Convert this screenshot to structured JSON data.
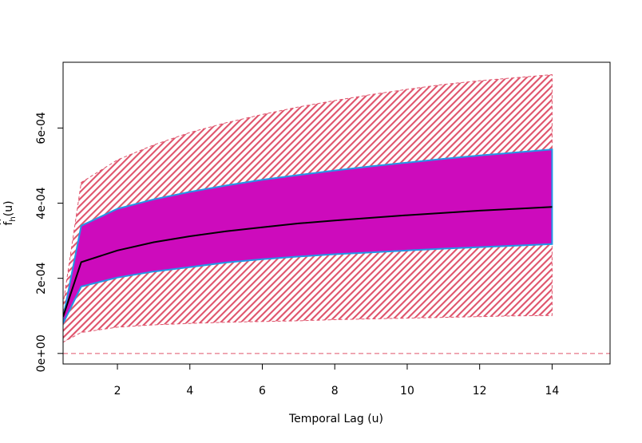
{
  "chart_data": {
    "type": "area",
    "title": "",
    "xlabel": "Temporal Lag (u)",
    "ylabel_main": "f",
    "ylabel_hat": "^",
    "ylabel_sub": "h",
    "ylabel_arg": "(u)",
    "xlim": [
      0.5,
      15.6
    ],
    "ylim": [
      -2.8e-05,
      0.000775
    ],
    "x_ticks": [
      2,
      4,
      6,
      8,
      10,
      12,
      14
    ],
    "x_tick_labels": [
      "2",
      "4",
      "6",
      "8",
      "10",
      "12",
      "14"
    ],
    "y_ticks": [
      0,
      0.0002,
      0.0004,
      0.0006
    ],
    "y_tick_labels": [
      "0e+00",
      "2e-04",
      "4e-04",
      "6e-04"
    ],
    "x": [
      0.5,
      1,
      2,
      3,
      4,
      5,
      6,
      7,
      8,
      9,
      10,
      11,
      12,
      13,
      14
    ],
    "series": [
      {
        "name": "outer_upper",
        "values": [
          0.00013,
          0.000455,
          0.000515,
          0.000555,
          0.000588,
          0.000614,
          0.000636,
          0.000656,
          0.000673,
          0.000689,
          0.000703,
          0.000716,
          0.000726,
          0.000734,
          0.000742
        ]
      },
      {
        "name": "outer_lower",
        "values": [
          3e-05,
          5.6e-05,
          7e-05,
          7.6e-05,
          8e-05,
          8.3e-05,
          8.5e-05,
          8.7e-05,
          9e-05,
          9.2e-05,
          9.4e-05,
          9.6e-05,
          9.8e-05,
          0.0001,
          0.000101
        ]
      },
      {
        "name": "inner_upper",
        "values": [
          9.5e-05,
          0.00034,
          0.000385,
          0.00041,
          0.00043,
          0.000447,
          0.000462,
          0.000475,
          0.000487,
          0.000498,
          0.000508,
          0.000518,
          0.000527,
          0.000535,
          0.000543
        ]
      },
      {
        "name": "inner_lower",
        "values": [
          8e-05,
          0.000178,
          0.000202,
          0.000218,
          0.00023,
          0.000242,
          0.000251,
          0.000258,
          0.000264,
          0.000269,
          0.000274,
          0.000279,
          0.000283,
          0.000287,
          0.000291
        ]
      },
      {
        "name": "estimate",
        "values": [
          9.8e-05,
          0.000243,
          0.000274,
          0.000296,
          0.000312,
          0.000325,
          0.000336,
          0.000346,
          0.000354,
          0.000361,
          0.000368,
          0.000374,
          0.00038,
          0.000385,
          0.00039
        ]
      }
    ],
    "reference_line": {
      "y": 0,
      "style": "dashed"
    },
    "colors": {
      "hatch": "#DF536B",
      "inner_fill": "#CD0BBC",
      "inner_border": "#2297E6",
      "estimate": "#000000",
      "reference": "#DF536B"
    }
  }
}
